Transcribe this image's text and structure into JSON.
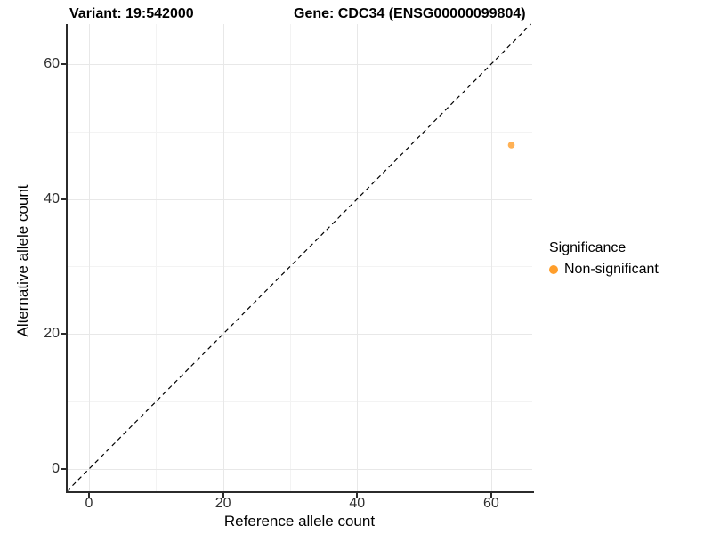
{
  "colors": {
    "background": "#FFFFFF",
    "axis": "#2B2B2B",
    "tick_label": "#303030",
    "grid_major": "#E8E8E8",
    "grid_minor": "#F3F3F3",
    "point": "#FF9E2B",
    "reference_line": "#000000"
  },
  "chart_data": {
    "type": "scatter",
    "titles": {
      "left": "Variant: 19:542000",
      "right": "Gene: CDC34 (ENSG00000099804)"
    },
    "xlabel": "Reference allele count",
    "ylabel": "Alternative allele count",
    "x_ticks": [
      0,
      20,
      40,
      60
    ],
    "y_ticks": [
      0,
      20,
      40,
      60
    ],
    "xlim": [
      -3.32,
      66.12
    ],
    "ylim": [
      -3.3,
      65.93
    ],
    "grid": {
      "major": true,
      "minor": true
    },
    "reference_line": {
      "type": "identity",
      "style": "dashed",
      "color": "#000000"
    },
    "legend": {
      "title": "Significance",
      "position": "right",
      "entries": [
        {
          "label": "Non-significant",
          "color": "#FF9E2B"
        }
      ]
    },
    "series": [
      {
        "name": "Non-significant",
        "color": "#FF9E2B",
        "opacity": 0.8,
        "point_radius": 3.8,
        "points": [
          [
            63,
            48
          ]
        ]
      }
    ]
  }
}
